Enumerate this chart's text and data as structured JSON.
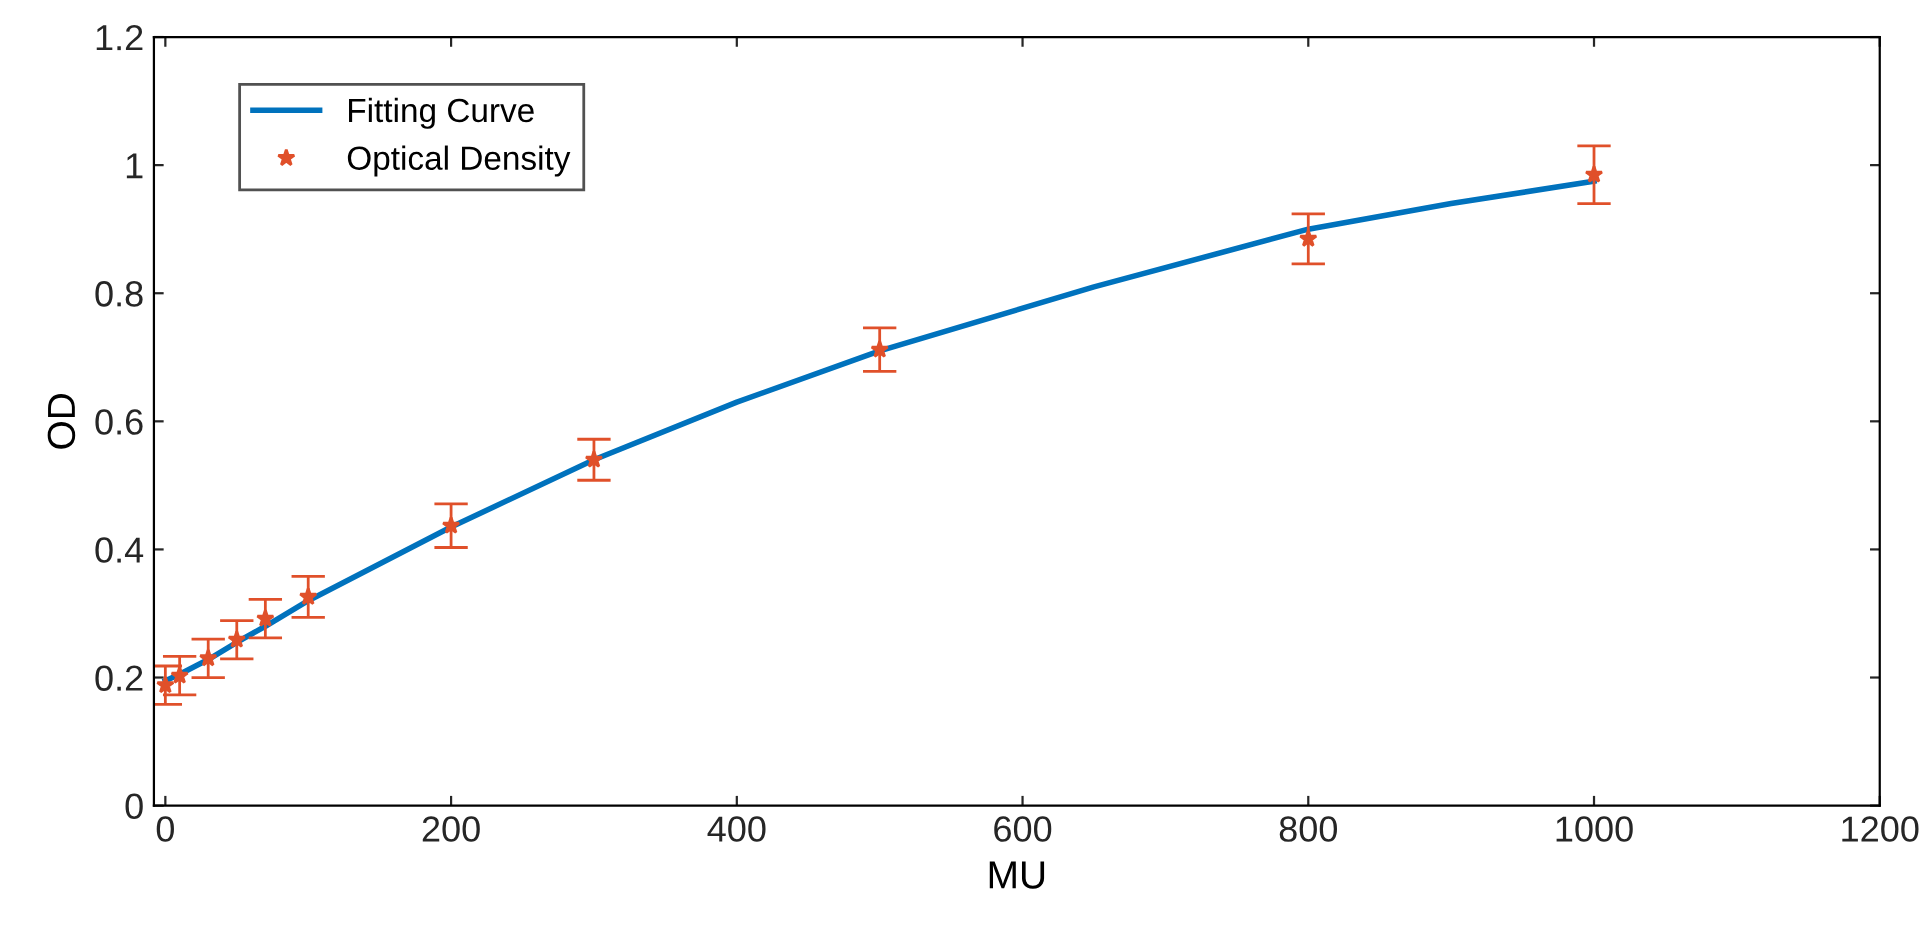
{
  "chart_data": {
    "type": "scatter",
    "xlabel": "MU",
    "ylabel": "OD",
    "xlim": [
      -8,
      1200
    ],
    "ylim": [
      0,
      1.2
    ],
    "xticks": [
      0,
      200,
      400,
      600,
      800,
      1000,
      1200
    ],
    "yticks": [
      0,
      0.2,
      0.4,
      0.6,
      0.8,
      1,
      1.2
    ],
    "grid": false,
    "legend": "top left",
    "series": [
      {
        "name": "Fitting Curve",
        "type": "line",
        "color": "#0072bd",
        "marker": "none",
        "line_style": "solid",
        "x": [
          0,
          10,
          30,
          50,
          70,
          100,
          200,
          300,
          400,
          500,
          650,
          800,
          900,
          1000
        ],
        "values": [
          0.195,
          0.205,
          0.228,
          0.255,
          0.28,
          0.32,
          0.435,
          0.54,
          0.63,
          0.71,
          0.81,
          0.9,
          0.94,
          0.975
        ]
      },
      {
        "name": "Optical Density",
        "color": "#e0502a",
        "marker": "star",
        "x": [
          0,
          10,
          30,
          50,
          70,
          100,
          200,
          300,
          500,
          800,
          1000
        ],
        "values": [
          0.188,
          0.203,
          0.23,
          0.259,
          0.292,
          0.326,
          0.437,
          0.54,
          0.712,
          0.885,
          0.985
        ],
        "errors": [
          0.03,
          0.03,
          0.03,
          0.03,
          0.03,
          0.032,
          0.034,
          0.032,
          0.034,
          0.039,
          0.045
        ]
      }
    ]
  }
}
